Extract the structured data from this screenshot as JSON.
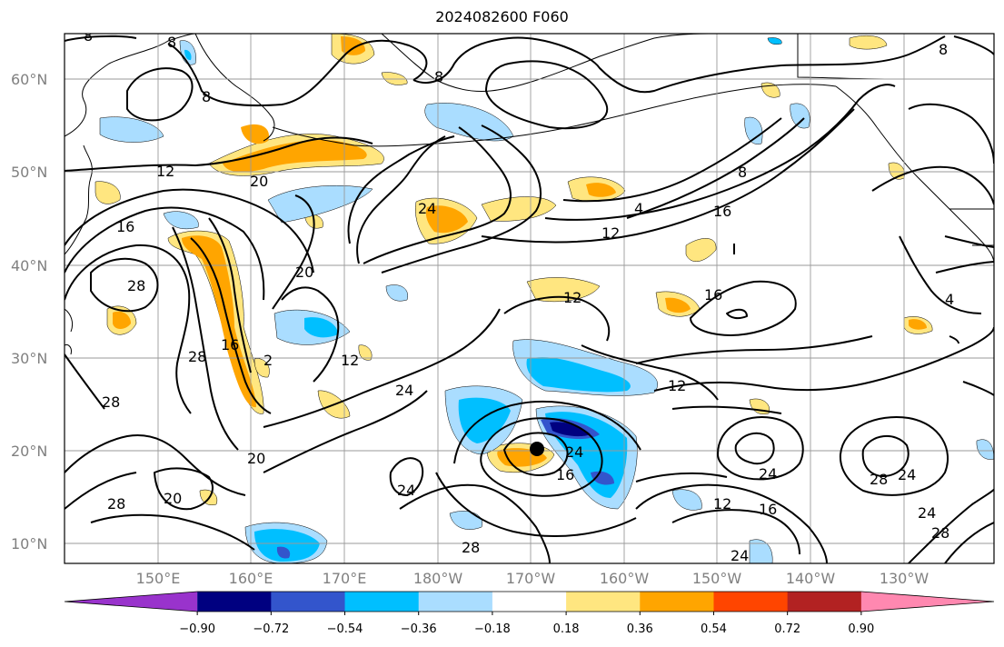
{
  "title": "2024082600 F060",
  "lat_labels": [
    "10°N",
    "20°N",
    "30°N",
    "40°N",
    "50°N",
    "60°N"
  ],
  "lon_labels": [
    "150°E",
    "160°E",
    "170°E",
    "180°W",
    "170°W",
    "160°W",
    "150°W",
    "140°W",
    "130°W"
  ],
  "colorbar": {
    "colors": [
      "#9933cc",
      "#000080",
      "#3355cc",
      "#00bfff",
      "#aaddff",
      "#ffffff",
      "#ffe680",
      "#ffa500",
      "#ff4500",
      "#b22222",
      "#ff88b0"
    ],
    "tick_labels": [
      "−0.90",
      "−0.72",
      "−0.54",
      "−0.36",
      "−0.18",
      "0.18",
      "0.36",
      "0.54",
      "0.72",
      "0.90"
    ]
  },
  "contour_labels": {
    "c8a": "8",
    "c8b": "8",
    "c8c": "8",
    "c8d": "8",
    "c8e": "8",
    "c8f": "8",
    "c12a": "12",
    "c12b": "12",
    "c12c": "12",
    "c12d": "12",
    "c12e": "12",
    "c12f": "12",
    "c16a": "16",
    "c16b": "16",
    "c16c": "16",
    "c16d": "16",
    "c16e": "16",
    "c16f": "16",
    "c20a": "20",
    "c20b": "20",
    "c20c": "20",
    "c20d": "20",
    "c24a": "24",
    "c24b": "24",
    "c24c": "24",
    "c24d": "24",
    "c24e": "24",
    "c24f": "24",
    "c24g": "24",
    "c24h": "24",
    "c28a": "28",
    "c28b": "28",
    "c28c": "28",
    "c28d": "28",
    "c28e": "28",
    "c28f": "28",
    "c28g": "28",
    "c4a": "4",
    "c4b": "4",
    "c2a": "2"
  }
}
